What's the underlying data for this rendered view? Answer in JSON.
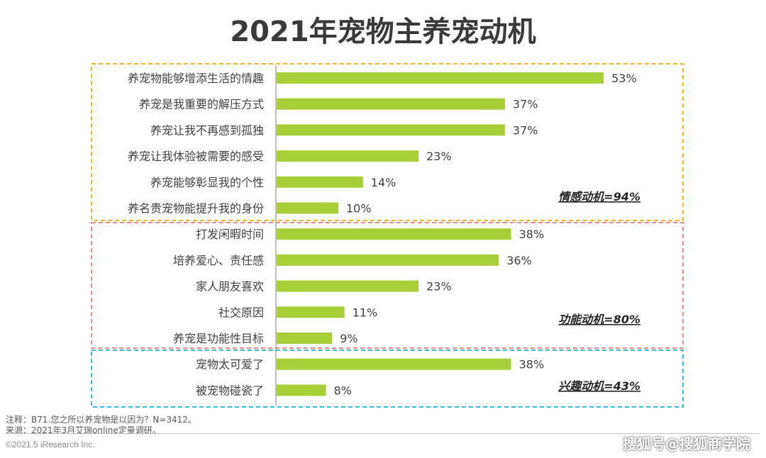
{
  "title": "2021年宠物主养宠动机",
  "chart_data": {
    "type": "bar",
    "orientation": "horizontal",
    "categories": [
      "养宠物能够增添生活的情趣",
      "养宠是我重要的解压方式",
      "养宠让我不再感到孤独",
      "养宠让我体验被需要的感受",
      "养宠能够彰显我的个性",
      "养名贵宠物能提升我的身份",
      "打发闲暇时间",
      "培养爱心、责任感",
      "家人朋友喜欢",
      "社交原因",
      "养宠是功能性目标",
      "宠物太可爱了",
      "被宠物碰瓷了"
    ],
    "values": [
      53,
      37,
      37,
      23,
      14,
      10,
      38,
      36,
      23,
      11,
      9,
      38,
      8
    ],
    "value_labels": [
      "53%",
      "37%",
      "37%",
      "23%",
      "14%",
      "10%",
      "38%",
      "36%",
      "23%",
      "11%",
      "9%",
      "38%",
      "8%"
    ],
    "unit": "%",
    "xlim": [
      0,
      60
    ],
    "bar_color": "#a9cf38",
    "groups": [
      {
        "label": "情感动机=94%",
        "start": 0,
        "end": 5,
        "border_color": "#f7b72b"
      },
      {
        "label": "功能动机=80%",
        "start": 6,
        "end": 10,
        "border_color": "#ef8c8c"
      },
      {
        "label": "兴趣动机=43%",
        "start": 11,
        "end": 12,
        "border_color": "#35bde3"
      }
    ]
  },
  "footnotes": {
    "note": "注释：B71.您之所以养宠物是以因为？N=3412。",
    "source": "来源：2021年3月艾瑞online定量调研。",
    "copyright": "©2021.5 iResearch Inc."
  },
  "watermark": "搜狐号@搜狐商学院"
}
